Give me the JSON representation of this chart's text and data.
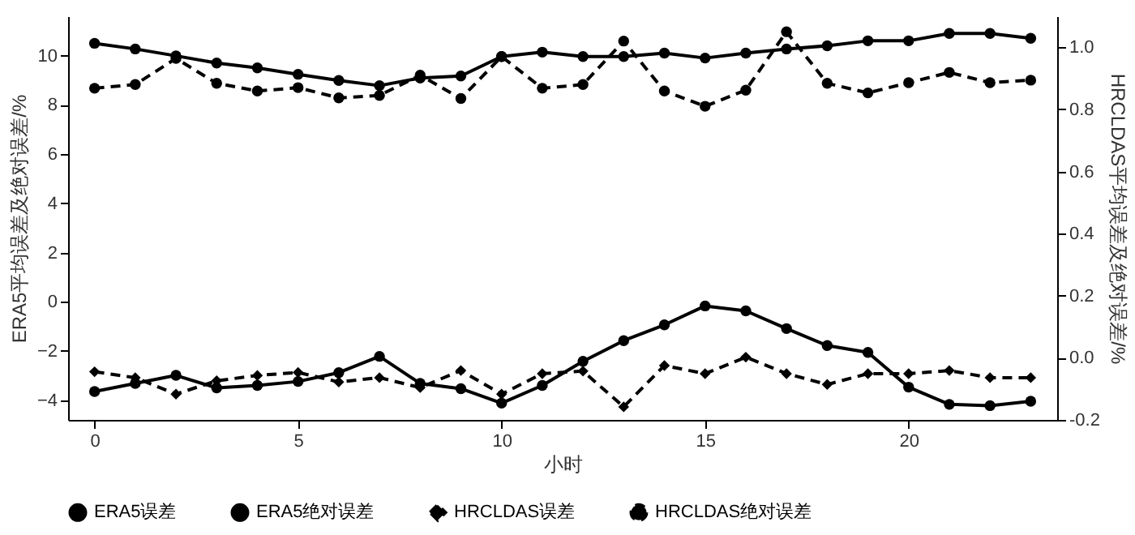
{
  "chart_data": {
    "type": "line",
    "xlabel": "小时",
    "ylabel": "ERA5平均误差及绝对误差/%",
    "y2label": "HRCLDAS平均误差及绝对误差/%",
    "x": [
      0,
      1,
      2,
      3,
      4,
      5,
      6,
      7,
      8,
      9,
      10,
      11,
      12,
      13,
      14,
      15,
      16,
      17,
      18,
      19,
      20,
      21,
      22,
      23
    ],
    "xlim": [
      -0.65,
      23.65
    ],
    "xticks": [
      0,
      5,
      10,
      15,
      20
    ],
    "ylim": [
      -4.8,
      11.6
    ],
    "yticks": [
      -4,
      -2,
      0,
      2,
      4,
      6,
      8,
      10
    ],
    "y2lim": [
      -0.2,
      1.1
    ],
    "y2ticks": [
      {
        "value": -0.2,
        "label": "-0.2"
      },
      {
        "value": 0,
        "label": "0.0"
      },
      {
        "value": 0.2,
        "label": "0.2"
      },
      {
        "value": 0.4,
        "label": "0.4"
      },
      {
        "value": 0.6,
        "label": "0.6"
      },
      {
        "value": 0.8,
        "label": "0.8"
      },
      {
        "value": 1,
        "label": "1.0"
      }
    ],
    "grid": false,
    "legend": "bottom",
    "series": [
      {
        "name": "ERA5误差",
        "color": "#000000",
        "marker": "circle",
        "line_style": "solid",
        "values": [
          -3.65,
          -3.32,
          -2.99,
          -3.5,
          -3.4,
          -3.24,
          -2.88,
          -2.22,
          -3.32,
          -3.53,
          -4.12,
          -3.4,
          -2.42,
          -1.58,
          -0.94,
          -0.17,
          -0.37,
          -1.09,
          -1.78,
          -2.06,
          -3.47,
          -4.17,
          -4.22,
          -4.04
        ]
      },
      {
        "name": "ERA5绝对误差",
        "color": "#000000",
        "marker": "circle",
        "line_style": "solid",
        "values": [
          10.5,
          10.27,
          9.99,
          9.7,
          9.5,
          9.24,
          8.99,
          8.78,
          9.09,
          9.17,
          9.96,
          10.14,
          9.96,
          9.96,
          10.1,
          9.9,
          10.1,
          10.27,
          10.4,
          10.6,
          10.6,
          10.9,
          10.9,
          10.7
        ]
      },
      {
        "name": "HRCLDAS误差",
        "color": "#000000",
        "marker": "diamond",
        "line_style": "dashed",
        "axis": "y2",
        "values": [
          -0.045,
          -0.064,
          -0.117,
          -0.074,
          -0.057,
          -0.047,
          -0.078,
          -0.064,
          -0.096,
          -0.041,
          -0.117,
          -0.051,
          -0.043,
          -0.158,
          -0.025,
          -0.051,
          0.002,
          -0.051,
          -0.086,
          -0.051,
          -0.051,
          -0.041,
          -0.064,
          -0.064
        ]
      },
      {
        "name": "HRCLDAS绝对误差",
        "color": "#000000",
        "marker": "circle",
        "line_style": "dashed",
        "axis": "y2",
        "values": [
          0.868,
          0.88,
          0.964,
          0.884,
          0.859,
          0.87,
          0.837,
          0.845,
          0.91,
          0.835,
          0.97,
          0.868,
          0.88,
          1.02,
          0.859,
          0.81,
          0.862,
          1.05,
          0.884,
          0.853,
          0.886,
          0.919,
          0.886,
          0.894
        ]
      }
    ]
  }
}
